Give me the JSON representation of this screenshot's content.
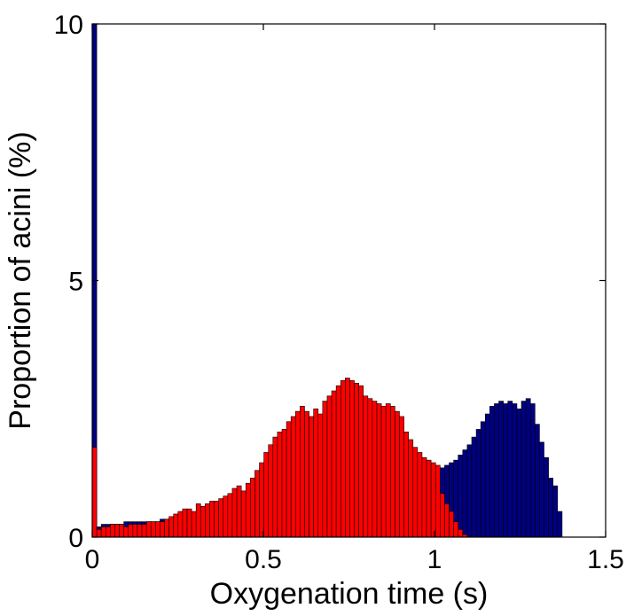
{
  "chart_data": {
    "type": "bar",
    "title": "",
    "xlabel": "Oxygenation time (s)",
    "ylabel": "Proportion of acini (%)",
    "xlim": [
      0,
      1.5
    ],
    "ylim": [
      0,
      10
    ],
    "xticks": [
      0,
      0.5,
      1,
      1.5
    ],
    "xtick_labels": [
      "0",
      "0.5",
      "1",
      "1.5"
    ],
    "yticks": [
      0,
      5,
      10
    ],
    "ytick_labels": [
      "0",
      "5",
      "10"
    ],
    "grid": false,
    "legend": "none",
    "bin_width": 0.0132,
    "bin_centers": [
      0.0066,
      0.0198,
      0.033,
      0.0462,
      0.0594,
      0.0726,
      0.0858,
      0.099,
      0.1122,
      0.1254,
      0.1386,
      0.1518,
      0.165,
      0.1782,
      0.1914,
      0.2046,
      0.2178,
      0.231,
      0.2442,
      0.2574,
      0.2706,
      0.2838,
      0.297,
      0.3102,
      0.3234,
      0.3366,
      0.3498,
      0.363,
      0.3762,
      0.3894,
      0.4026,
      0.4158,
      0.429,
      0.4422,
      0.4554,
      0.4686,
      0.4818,
      0.495,
      0.5082,
      0.5214,
      0.5346,
      0.5478,
      0.561,
      0.5742,
      0.5874,
      0.6006,
      0.6138,
      0.627,
      0.6402,
      0.6534,
      0.6666,
      0.6798,
      0.693,
      0.7062,
      0.7194,
      0.7326,
      0.7458,
      0.759,
      0.7722,
      0.7854,
      0.7986,
      0.8118,
      0.825,
      0.8382,
      0.8514,
      0.8646,
      0.8778,
      0.891,
      0.9042,
      0.9174,
      0.9306,
      0.9438,
      0.957,
      0.9702,
      0.9834,
      0.9966,
      1.0098,
      1.023,
      1.0362,
      1.0494,
      1.0626,
      1.0758,
      1.089,
      1.1022,
      1.1154,
      1.1286,
      1.1418,
      1.155,
      1.1682,
      1.1814,
      1.1946,
      1.2078,
      1.221,
      1.2342,
      1.2474,
      1.2606,
      1.2738,
      1.287,
      1.3002,
      1.3134,
      1.3266,
      1.3398,
      1.353,
      1.3662
    ],
    "series": [
      {
        "color": "#000080",
        "values": [
          10,
          0.2,
          0.25,
          0.25,
          0.25,
          0.25,
          0.25,
          0.3,
          0.3,
          0.3,
          0.3,
          0.3,
          0.3,
          0.3,
          0.3,
          0.35,
          0.35,
          0.35,
          0.35,
          0.35,
          0.4,
          0.4,
          0.4,
          0.4,
          0.4,
          0.4,
          0.4,
          0.45,
          0.45,
          0.45,
          0.45,
          0.45,
          0.45,
          0.5,
          0.5,
          0.5,
          0.5,
          0.5,
          0.5,
          0.55,
          0.55,
          0.55,
          0.55,
          0.6,
          0.6,
          0.6,
          0.6,
          0.6,
          0.65,
          0.65,
          0.65,
          0.65,
          0.65,
          0.7,
          0.7,
          0.7,
          0.7,
          0.75,
          0.75,
          0.75,
          0.75,
          0.8,
          0.8,
          0.8,
          0.85,
          0.85,
          0.85,
          0.9,
          0.9,
          0.95,
          1.0,
          1.05,
          1.1,
          1.15,
          1.2,
          1.25,
          1.3,
          1.35,
          1.4,
          1.45,
          1.5,
          1.6,
          1.7,
          1.8,
          1.95,
          2.1,
          2.25,
          2.4,
          2.55,
          2.6,
          2.65,
          2.6,
          2.65,
          2.6,
          2.5,
          2.65,
          2.7,
          2.6,
          2.2,
          1.85,
          1.55,
          1.15,
          1.0,
          0.5
        ]
      },
      {
        "color": "#ff0000",
        "values": [
          1.75,
          0.15,
          0.2,
          0.2,
          0.25,
          0.25,
          0.25,
          0.2,
          0.25,
          0.25,
          0.25,
          0.25,
          0.3,
          0.3,
          0.3,
          0.3,
          0.35,
          0.4,
          0.45,
          0.5,
          0.55,
          0.55,
          0.5,
          0.65,
          0.6,
          0.65,
          0.7,
          0.7,
          0.75,
          0.8,
          0.85,
          0.95,
          1.0,
          0.9,
          1.05,
          1.15,
          1.3,
          1.45,
          1.65,
          1.8,
          1.95,
          2.05,
          2.1,
          2.25,
          2.35,
          2.45,
          2.55,
          2.45,
          2.35,
          2.5,
          2.4,
          2.65,
          2.75,
          2.85,
          2.95,
          3.05,
          3.1,
          3.05,
          3.0,
          2.95,
          2.75,
          2.7,
          2.65,
          2.6,
          2.55,
          2.6,
          2.55,
          2.45,
          2.35,
          2.05,
          1.9,
          1.75,
          1.65,
          1.55,
          1.5,
          1.45,
          1.4,
          0.85,
          0.65,
          0.5,
          0.3,
          0.15,
          0.05,
          0,
          0,
          0,
          0,
          0,
          0,
          0,
          0,
          0,
          0,
          0,
          0,
          0,
          0,
          0,
          0,
          0,
          0,
          0,
          0,
          0
        ]
      }
    ]
  }
}
